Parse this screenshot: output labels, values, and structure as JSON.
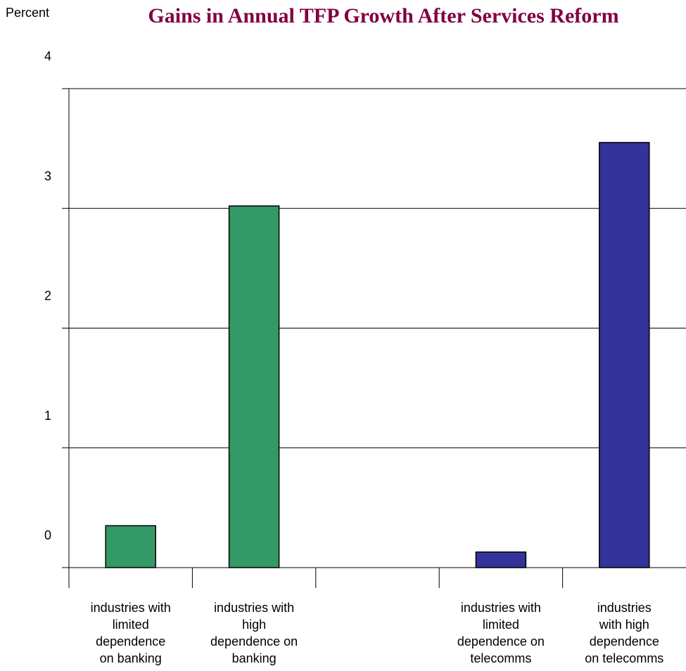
{
  "chart_data": {
    "type": "bar",
    "title": "Gains in Annual TFP Growth After Services Reform",
    "ylabel": "Percent",
    "xlabel": "",
    "ylim": [
      0,
      4
    ],
    "y_ticks": [
      "0",
      "1",
      "2",
      "3",
      "4"
    ],
    "grid": true,
    "categories": [
      [
        "industries with",
        "limited",
        "dependence",
        "on banking"
      ],
      [
        "industries with",
        "high",
        "dependence on",
        "banking"
      ],
      [],
      [
        "industries with",
        "limited",
        "dependence on",
        "telecomms"
      ],
      [
        "industries",
        "with high",
        "dependence",
        "on telecomms"
      ]
    ],
    "values": [
      0.35,
      3.02,
      null,
      0.13,
      3.55
    ],
    "colors": [
      "#339966",
      "#339966",
      null,
      "#333399",
      "#333399"
    ]
  },
  "colors": {
    "title": "#800040",
    "grid": "#000000"
  }
}
